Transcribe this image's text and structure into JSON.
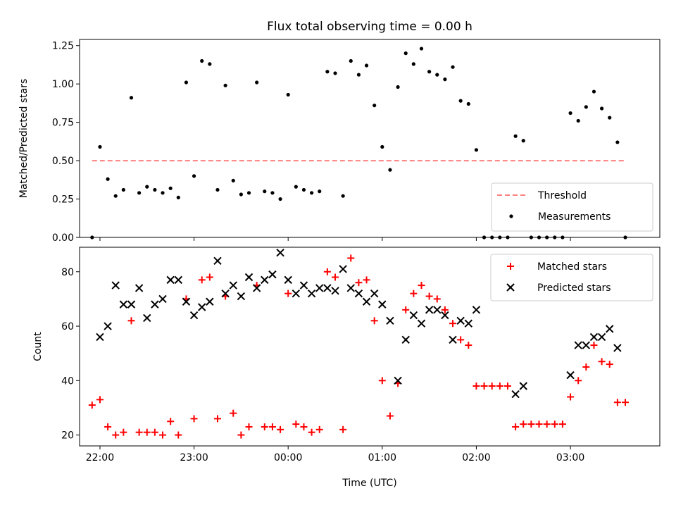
{
  "figure": {
    "title": "Flux total observing time = 0.00 h",
    "xlabel": "Time (UTC)"
  },
  "chart_data": [
    {
      "type": "scatter",
      "ylabel": "Matched/Predicted stars",
      "xlim": [
        "21:47",
        "03:57"
      ],
      "ylim": [
        0,
        1.29
      ],
      "xticks": [
        {
          "t": "22:00",
          "label": ""
        },
        {
          "t": "23:00",
          "label": ""
        },
        {
          "t": "00:00",
          "label": ""
        },
        {
          "t": "01:00",
          "label": ""
        },
        {
          "t": "02:00",
          "label": ""
        },
        {
          "t": "03:00",
          "label": ""
        }
      ],
      "yticks": [
        {
          "v": 0,
          "label": "0.00"
        },
        {
          "v": 0.25,
          "label": "0.25"
        },
        {
          "v": 0.5,
          "label": "0.50"
        },
        {
          "v": 0.75,
          "label": "0.75"
        },
        {
          "v": 1.0,
          "label": "1.00"
        },
        {
          "v": 1.25,
          "label": "1.25"
        }
      ],
      "threshold": {
        "name": "Threshold",
        "value": 0.5,
        "x_start": "21:55",
        "x_end": "03:35",
        "color": "#ff8080"
      },
      "series": [
        {
          "name": "Measurements",
          "color": "#000000",
          "marker": "dot",
          "points": [
            [
              "21:55",
              0.0
            ],
            [
              "22:00",
              0.59
            ],
            [
              "22:05",
              0.38
            ],
            [
              "22:10",
              0.27
            ],
            [
              "22:15",
              0.31
            ],
            [
              "22:20",
              0.91
            ],
            [
              "22:25",
              0.29
            ],
            [
              "22:30",
              0.33
            ],
            [
              "22:35",
              0.31
            ],
            [
              "22:40",
              0.29
            ],
            [
              "22:45",
              0.32
            ],
            [
              "22:50",
              0.26
            ],
            [
              "22:55",
              1.01
            ],
            [
              "23:00",
              0.4
            ],
            [
              "23:05",
              1.15
            ],
            [
              "23:10",
              1.13
            ],
            [
              "23:15",
              0.31
            ],
            [
              "23:20",
              0.99
            ],
            [
              "23:25",
              0.37
            ],
            [
              "23:30",
              0.28
            ],
            [
              "23:35",
              0.29
            ],
            [
              "23:40",
              1.01
            ],
            [
              "23:45",
              0.3
            ],
            [
              "23:50",
              0.29
            ],
            [
              "23:55",
              0.25
            ],
            [
              "00:00",
              0.93
            ],
            [
              "00:05",
              0.33
            ],
            [
              "00:10",
              0.31
            ],
            [
              "00:15",
              0.29
            ],
            [
              "00:20",
              0.3
            ],
            [
              "00:25",
              1.08
            ],
            [
              "00:30",
              1.07
            ],
            [
              "00:35",
              0.27
            ],
            [
              "00:40",
              1.15
            ],
            [
              "00:45",
              1.06
            ],
            [
              "00:50",
              1.12
            ],
            [
              "00:55",
              0.86
            ],
            [
              "01:00",
              0.59
            ],
            [
              "01:05",
              0.44
            ],
            [
              "01:10",
              0.98
            ],
            [
              "01:15",
              1.2
            ],
            [
              "01:20",
              1.13
            ],
            [
              "01:25",
              1.23
            ],
            [
              "01:30",
              1.08
            ],
            [
              "01:35",
              1.06
            ],
            [
              "01:40",
              1.03
            ],
            [
              "01:45",
              1.11
            ],
            [
              "01:50",
              0.89
            ],
            [
              "01:55",
              0.87
            ],
            [
              "02:00",
              0.57
            ],
            [
              "02:05",
              0.0
            ],
            [
              "02:10",
              0.0
            ],
            [
              "02:15",
              0.0
            ],
            [
              "02:20",
              0.0
            ],
            [
              "02:25",
              0.66
            ],
            [
              "02:30",
              0.63
            ],
            [
              "02:35",
              0.0
            ],
            [
              "02:40",
              0.0
            ],
            [
              "02:45",
              0.0
            ],
            [
              "02:50",
              0.0
            ],
            [
              "02:55",
              0.0
            ],
            [
              "03:00",
              0.81
            ],
            [
              "03:05",
              0.76
            ],
            [
              "03:10",
              0.85
            ],
            [
              "03:15",
              0.95
            ],
            [
              "03:20",
              0.84
            ],
            [
              "03:25",
              0.78
            ],
            [
              "03:30",
              0.62
            ],
            [
              "03:35",
              0.0
            ]
          ]
        }
      ],
      "legend": {
        "position": "lower-right",
        "entries": [
          "Threshold",
          "Measurements"
        ]
      }
    },
    {
      "type": "scatter",
      "ylabel": "Count",
      "xlim": [
        "21:47",
        "03:57"
      ],
      "ylim": [
        16,
        89
      ],
      "xticks": [
        {
          "t": "22:00",
          "label": "22:00"
        },
        {
          "t": "23:00",
          "label": "23:00"
        },
        {
          "t": "00:00",
          "label": "00:00"
        },
        {
          "t": "01:00",
          "label": "01:00"
        },
        {
          "t": "02:00",
          "label": "02:00"
        },
        {
          "t": "03:00",
          "label": "03:00"
        }
      ],
      "yticks": [
        {
          "v": 20,
          "label": "20"
        },
        {
          "v": 40,
          "label": "40"
        },
        {
          "v": 60,
          "label": "60"
        },
        {
          "v": 80,
          "label": "80"
        }
      ],
      "series": [
        {
          "name": "Matched stars",
          "color": "#ff0000",
          "marker": "plus",
          "points": [
            [
              "21:55",
              31
            ],
            [
              "22:00",
              33
            ],
            [
              "22:05",
              23
            ],
            [
              "22:10",
              20
            ],
            [
              "22:15",
              21
            ],
            [
              "22:20",
              62
            ],
            [
              "22:25",
              21
            ],
            [
              "22:30",
              21
            ],
            [
              "22:35",
              21
            ],
            [
              "22:40",
              20
            ],
            [
              "22:45",
              25
            ],
            [
              "22:50",
              20
            ],
            [
              "22:55",
              70
            ],
            [
              "23:00",
              26
            ],
            [
              "23:05",
              77
            ],
            [
              "23:10",
              78
            ],
            [
              "23:15",
              26
            ],
            [
              "23:20",
              71
            ],
            [
              "23:25",
              28
            ],
            [
              "23:30",
              20
            ],
            [
              "23:35",
              23
            ],
            [
              "23:40",
              75
            ],
            [
              "23:45",
              23
            ],
            [
              "23:50",
              23
            ],
            [
              "23:55",
              22
            ],
            [
              "00:00",
              72
            ],
            [
              "00:05",
              24
            ],
            [
              "00:10",
              23
            ],
            [
              "00:15",
              21
            ],
            [
              "00:20",
              22
            ],
            [
              "00:25",
              80
            ],
            [
              "00:30",
              78
            ],
            [
              "00:35",
              22
            ],
            [
              "00:40",
              85
            ],
            [
              "00:45",
              76
            ],
            [
              "00:50",
              77
            ],
            [
              "00:55",
              62
            ],
            [
              "01:00",
              40
            ],
            [
              "01:05",
              27
            ],
            [
              "01:10",
              39
            ],
            [
              "01:15",
              66
            ],
            [
              "01:20",
              72
            ],
            [
              "01:25",
              75
            ],
            [
              "01:30",
              71
            ],
            [
              "01:35",
              70
            ],
            [
              "01:40",
              66
            ],
            [
              "01:45",
              61
            ],
            [
              "01:50",
              55
            ],
            [
              "01:55",
              53
            ],
            [
              "02:00",
              38
            ],
            [
              "02:05",
              38
            ],
            [
              "02:10",
              38
            ],
            [
              "02:15",
              38
            ],
            [
              "02:20",
              38
            ],
            [
              "02:25",
              23
            ],
            [
              "02:30",
              24
            ],
            [
              "02:35",
              24
            ],
            [
              "02:40",
              24
            ],
            [
              "02:45",
              24
            ],
            [
              "02:50",
              24
            ],
            [
              "02:55",
              24
            ],
            [
              "03:00",
              34
            ],
            [
              "03:05",
              40
            ],
            [
              "03:10",
              45
            ],
            [
              "03:15",
              53
            ],
            [
              "03:20",
              47
            ],
            [
              "03:25",
              46
            ],
            [
              "03:30",
              32
            ],
            [
              "03:35",
              32
            ]
          ]
        },
        {
          "name": "Predicted stars",
          "color": "#000000",
          "marker": "x",
          "points": [
            [
              "22:00",
              56
            ],
            [
              "22:05",
              60
            ],
            [
              "22:10",
              75
            ],
            [
              "22:15",
              68
            ],
            [
              "22:20",
              68
            ],
            [
              "22:25",
              74
            ],
            [
              "22:30",
              63
            ],
            [
              "22:35",
              68
            ],
            [
              "22:40",
              70
            ],
            [
              "22:45",
              77
            ],
            [
              "22:50",
              77
            ],
            [
              "22:55",
              69
            ],
            [
              "23:00",
              64
            ],
            [
              "23:05",
              67
            ],
            [
              "23:10",
              69
            ],
            [
              "23:15",
              84
            ],
            [
              "23:20",
              72
            ],
            [
              "23:25",
              75
            ],
            [
              "23:30",
              71
            ],
            [
              "23:35",
              78
            ],
            [
              "23:40",
              74
            ],
            [
              "23:45",
              77
            ],
            [
              "23:50",
              79
            ],
            [
              "23:55",
              87
            ],
            [
              "00:00",
              77
            ],
            [
              "00:05",
              72
            ],
            [
              "00:10",
              75
            ],
            [
              "00:15",
              72
            ],
            [
              "00:20",
              74
            ],
            [
              "00:25",
              74
            ],
            [
              "00:30",
              73
            ],
            [
              "00:35",
              81
            ],
            [
              "00:40",
              74
            ],
            [
              "00:45",
              72
            ],
            [
              "00:50",
              69
            ],
            [
              "00:55",
              72
            ],
            [
              "01:00",
              68
            ],
            [
              "01:05",
              62
            ],
            [
              "01:10",
              40
            ],
            [
              "01:15",
              55
            ],
            [
              "01:20",
              64
            ],
            [
              "01:25",
              61
            ],
            [
              "01:30",
              66
            ],
            [
              "01:35",
              66
            ],
            [
              "01:40",
              64
            ],
            [
              "01:45",
              55
            ],
            [
              "01:50",
              62
            ],
            [
              "01:55",
              61
            ],
            [
              "02:00",
              66
            ],
            [
              "02:25",
              35
            ],
            [
              "02:30",
              38
            ],
            [
              "03:00",
              42
            ],
            [
              "03:05",
              53
            ],
            [
              "03:10",
              53
            ],
            [
              "03:15",
              56
            ],
            [
              "03:20",
              56
            ],
            [
              "03:25",
              59
            ],
            [
              "03:30",
              52
            ]
          ]
        }
      ],
      "legend": {
        "position": "upper-right",
        "entries": [
          "Matched stars",
          "Predicted stars"
        ]
      }
    }
  ]
}
